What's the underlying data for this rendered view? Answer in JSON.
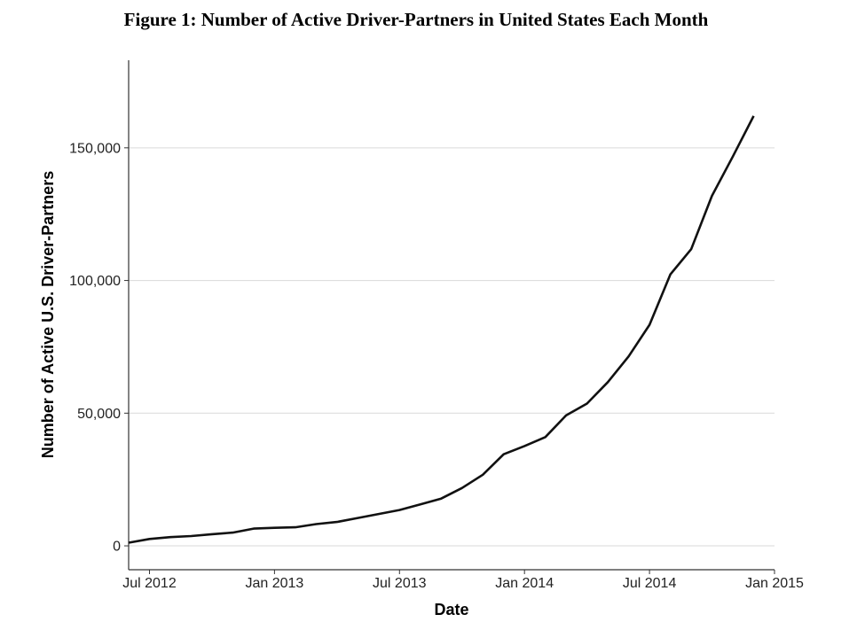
{
  "chart_data": {
    "type": "line",
    "title": "Figure 1: Number of Active Driver-Partners in United States Each Month",
    "xlabel": "Date",
    "ylabel": "Number of Active U.S. Driver-Partners",
    "x_ticks": [
      {
        "date": "2012-07",
        "label": "Jul 2012"
      },
      {
        "date": "2013-01",
        "label": "Jan 2013"
      },
      {
        "date": "2013-07",
        "label": "Jul 2013"
      },
      {
        "date": "2014-01",
        "label": "Jan 2014"
      },
      {
        "date": "2014-07",
        "label": "Jul 2014"
      },
      {
        "date": "2015-01",
        "label": "Jan 2015"
      }
    ],
    "y_ticks": [
      {
        "value": 0,
        "label": "0"
      },
      {
        "value": 50000,
        "label": "50,000"
      },
      {
        "value": 100000,
        "label": "100,000"
      },
      {
        "value": 150000,
        "label": "150,000"
      }
    ],
    "xlim": [
      "2012-06",
      "2015-01"
    ],
    "ylim": [
      -9000,
      183000
    ],
    "grid": "horizontal",
    "line_color": "#111111",
    "series": [
      {
        "x": [
          "2012-06",
          "2012-07",
          "2012-08",
          "2012-09",
          "2012-10",
          "2012-11",
          "2012-12",
          "2013-01",
          "2013-02",
          "2013-03",
          "2013-04",
          "2013-05",
          "2013-06",
          "2013-07",
          "2013-08",
          "2013-09",
          "2013-10",
          "2013-11",
          "2013-12",
          "2014-01",
          "2014-02",
          "2014-03",
          "2014-04",
          "2014-05",
          "2014-06",
          "2014-07",
          "2014-08",
          "2014-09",
          "2014-10",
          "2014-11",
          "2014-12"
        ],
        "y": [
          1200,
          2600,
          3300,
          3700,
          4400,
          5000,
          6500,
          6800,
          7000,
          8200,
          9000,
          10500,
          12000,
          13500,
          15600,
          17800,
          21800,
          26800,
          34500,
          37600,
          41000,
          49200,
          53600,
          61700,
          71400,
          83300,
          102300,
          111800,
          131900,
          146700,
          162000
        ]
      }
    ]
  }
}
